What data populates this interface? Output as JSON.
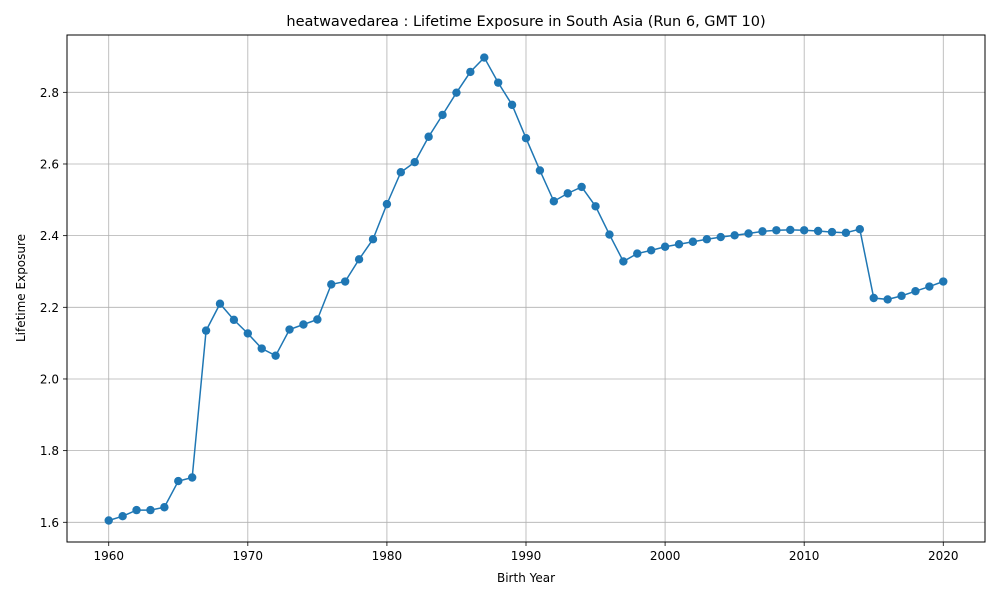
{
  "chart_data": {
    "type": "line",
    "title": "heatwavedarea : Lifetime Exposure in South Asia (Run 6, GMT 10)",
    "xlabel": "Birth Year",
    "ylabel": "Lifetime Exposure",
    "xlim": [
      1957,
      2023
    ],
    "ylim": [
      1.545,
      2.96
    ],
    "xticks": [
      1960,
      1970,
      1980,
      1990,
      2000,
      2010,
      2020
    ],
    "yticks": [
      1.6,
      1.8,
      2.0,
      2.2,
      2.4,
      2.6,
      2.8
    ],
    "ytick_labels": [
      "1.6",
      "1.8",
      "2.0",
      "2.2",
      "2.4",
      "2.6",
      "2.8"
    ],
    "grid": true,
    "series_color": "#1f77b4",
    "marker": "circle",
    "x": [
      1960,
      1961,
      1962,
      1963,
      1964,
      1965,
      1966,
      1967,
      1968,
      1969,
      1970,
      1971,
      1972,
      1973,
      1974,
      1975,
      1976,
      1977,
      1978,
      1979,
      1980,
      1981,
      1982,
      1983,
      1984,
      1985,
      1986,
      1987,
      1988,
      1989,
      1990,
      1991,
      1992,
      1993,
      1994,
      1995,
      1996,
      1997,
      1998,
      1999,
      2000,
      2001,
      2002,
      2003,
      2004,
      2005,
      2006,
      2007,
      2008,
      2009,
      2010,
      2011,
      2012,
      2013,
      2014,
      2015,
      2016,
      2017,
      2018,
      2019,
      2020
    ],
    "y": [
      1.605,
      1.617,
      1.634,
      1.634,
      1.642,
      1.715,
      1.725,
      2.135,
      2.21,
      2.165,
      2.127,
      2.085,
      2.065,
      2.138,
      2.152,
      2.166,
      2.264,
      2.272,
      2.334,
      2.39,
      2.488,
      2.577,
      2.605,
      2.676,
      2.737,
      2.799,
      2.857,
      2.897,
      2.827,
      2.765,
      2.672,
      2.582,
      2.496,
      2.518,
      2.536,
      2.482,
      2.403,
      2.328,
      2.35,
      2.359,
      2.369,
      2.376,
      2.383,
      2.39,
      2.396,
      2.401,
      2.406,
      2.412,
      2.415,
      2.416,
      2.415,
      2.413,
      2.41,
      2.408,
      2.418,
      2.226,
      2.222,
      2.232,
      2.245,
      2.258,
      2.272
    ]
  }
}
